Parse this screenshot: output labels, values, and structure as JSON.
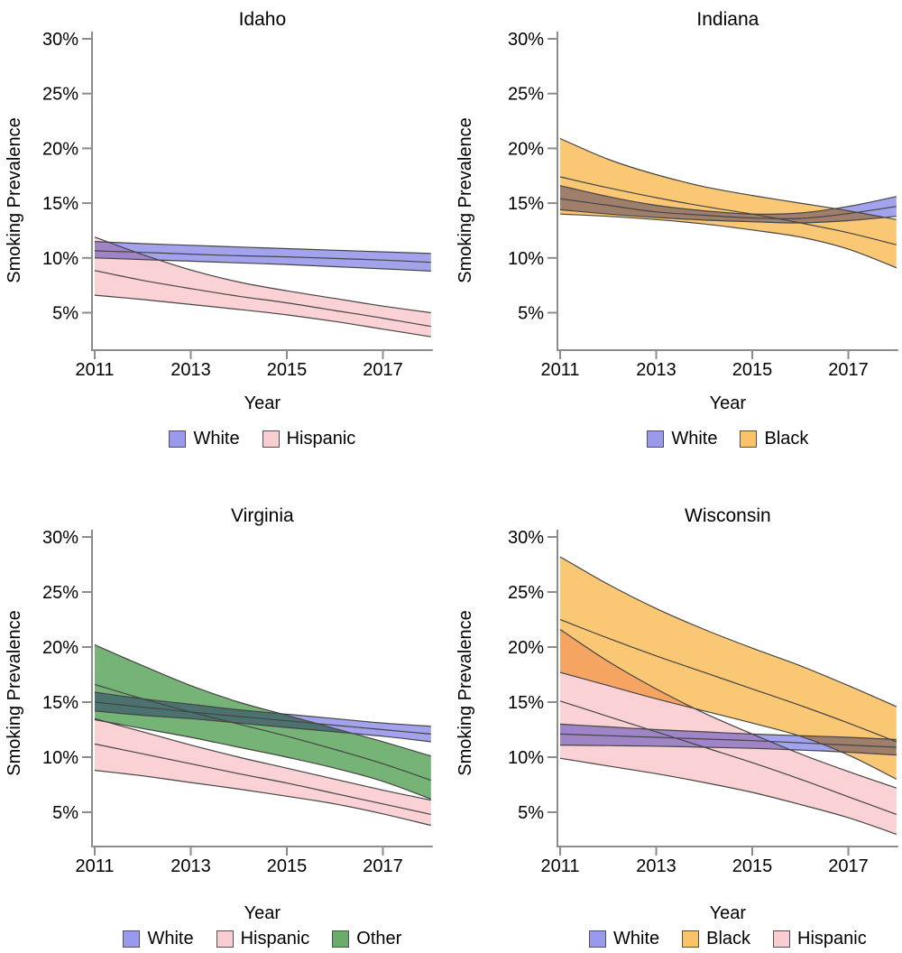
{
  "figure": {
    "ylabel": "Smoking Prevalence",
    "xlabel": "Year",
    "ytick_labels": [
      "30%",
      "25%",
      "20%",
      "15%",
      "10%",
      "5%"
    ],
    "ytick_values": [
      30,
      25,
      20,
      15,
      10,
      5
    ],
    "xtick_labels": [
      "2011",
      "2013",
      "2015",
      "2017"
    ],
    "xtick_values": [
      2011,
      2013,
      2015,
      2017
    ]
  },
  "palette": {
    "White": "#9a9aec",
    "Black": "#fac368",
    "Hispanic": "#facdd1",
    "Other": "#6aad6a",
    "band_edge": "#454545",
    "axis": "#8c8c8c",
    "text": "#000000",
    "background": "#ffffff"
  },
  "chart_data": [
    {
      "type": "area",
      "title": "Idaho",
      "xlabel": "Year",
      "ylabel": "Smoking Prevalence",
      "x": [
        2011,
        2012,
        2013,
        2014,
        2015,
        2016,
        2017,
        2018
      ],
      "xlim": [
        2011,
        2018
      ],
      "ylim": [
        1.5,
        30.5
      ],
      "legend_position": "bottom",
      "grid": false,
      "legend": [
        "White",
        "Hispanic"
      ],
      "series": [
        {
          "name": "White",
          "color": "White",
          "upper": [
            11.5,
            11.3,
            11.15,
            11.0,
            10.85,
            10.7,
            10.55,
            10.4
          ],
          "center": [
            10.65,
            10.5,
            10.35,
            10.2,
            10.1,
            9.95,
            9.8,
            9.6
          ],
          "lower": [
            10.0,
            9.85,
            9.7,
            9.55,
            9.4,
            9.2,
            9.0,
            8.8
          ]
        },
        {
          "name": "Hispanic",
          "color": "Hispanic",
          "upper": [
            11.9,
            10.3,
            8.9,
            7.8,
            7.0,
            6.3,
            5.6,
            5.0
          ],
          "center": [
            8.85,
            7.95,
            7.2,
            6.5,
            5.9,
            5.2,
            4.5,
            3.75
          ],
          "lower": [
            6.6,
            6.2,
            5.75,
            5.3,
            4.8,
            4.2,
            3.5,
            2.8
          ]
        }
      ]
    },
    {
      "type": "area",
      "title": "Indiana",
      "xlabel": "Year",
      "ylabel": "Smoking Prevalence",
      "x": [
        2011,
        2012,
        2013,
        2014,
        2015,
        2016,
        2017,
        2018
      ],
      "xlim": [
        2011,
        2018
      ],
      "ylim": [
        1.5,
        30.5
      ],
      "legend_position": "bottom",
      "grid": false,
      "legend": [
        "White",
        "Black"
      ],
      "series": [
        {
          "name": "White",
          "color": "White",
          "upper": [
            16.6,
            15.6,
            14.8,
            14.3,
            14.0,
            14.1,
            14.7,
            15.6
          ],
          "center": [
            15.4,
            14.8,
            14.2,
            13.9,
            13.65,
            13.6,
            14.05,
            14.7
          ],
          "lower": [
            14.4,
            14.0,
            13.7,
            13.45,
            13.3,
            13.2,
            13.4,
            13.8
          ]
        },
        {
          "name": "Black",
          "color": "Black",
          "upper": [
            20.9,
            19.0,
            17.6,
            16.5,
            15.7,
            15.0,
            14.3,
            13.5
          ],
          "center": [
            17.4,
            16.4,
            15.5,
            14.7,
            14.0,
            13.2,
            12.3,
            11.2
          ],
          "lower": [
            14.0,
            13.8,
            13.5,
            13.1,
            12.55,
            11.9,
            10.8,
            9.1
          ]
        }
      ]
    },
    {
      "type": "area",
      "title": "Virginia",
      "xlabel": "Year",
      "ylabel": "Smoking Prevalence",
      "x": [
        2011,
        2012,
        2013,
        2014,
        2015,
        2016,
        2017,
        2018
      ],
      "xlim": [
        2011,
        2018
      ],
      "ylim": [
        1.5,
        30.5
      ],
      "legend_position": "bottom",
      "grid": false,
      "legend": [
        "White",
        "Hispanic",
        "Other"
      ],
      "series": [
        {
          "name": "White",
          "color": "White",
          "upper": [
            15.9,
            15.3,
            14.8,
            14.3,
            13.9,
            13.5,
            13.1,
            12.8
          ],
          "center": [
            15.0,
            14.55,
            14.1,
            13.7,
            13.3,
            12.9,
            12.5,
            12.1
          ],
          "lower": [
            14.2,
            13.8,
            13.5,
            13.1,
            12.7,
            12.3,
            11.9,
            11.4
          ]
        },
        {
          "name": "Hispanic",
          "color": "Hispanic",
          "upper": [
            13.5,
            12.3,
            11.1,
            10.0,
            9.0,
            8.0,
            7.0,
            6.1
          ],
          "center": [
            11.2,
            10.3,
            9.4,
            8.5,
            7.65,
            6.7,
            5.75,
            4.8
          ],
          "lower": [
            8.8,
            8.3,
            7.7,
            7.1,
            6.45,
            5.75,
            4.85,
            3.8
          ]
        },
        {
          "name": "Other",
          "color": "Other",
          "upper": [
            20.2,
            18.3,
            16.5,
            15.0,
            13.8,
            12.6,
            11.4,
            10.1
          ],
          "center": [
            16.6,
            15.3,
            14.1,
            13.0,
            11.9,
            10.7,
            9.4,
            7.9
          ],
          "lower": [
            13.4,
            12.6,
            11.8,
            10.9,
            10.0,
            9.0,
            7.8,
            6.2
          ]
        }
      ]
    },
    {
      "type": "area",
      "title": "Wisconsin",
      "xlabel": "Year",
      "ylabel": "Smoking Prevalence",
      "x": [
        2011,
        2012,
        2013,
        2014,
        2015,
        2016,
        2017,
        2018
      ],
      "xlim": [
        2011,
        2018
      ],
      "ylim": [
        1.5,
        30.5
      ],
      "legend_position": "bottom",
      "grid": false,
      "legend": [
        "White",
        "Black",
        "Hispanic"
      ],
      "series": [
        {
          "name": "White",
          "color": "White",
          "upper": [
            13.0,
            12.75,
            12.5,
            12.3,
            12.1,
            11.95,
            11.8,
            11.6
          ],
          "center": [
            12.1,
            11.95,
            11.8,
            11.65,
            11.5,
            11.3,
            11.1,
            10.9
          ],
          "lower": [
            11.1,
            11.05,
            11.0,
            10.9,
            10.8,
            10.65,
            10.45,
            10.2
          ]
        },
        {
          "name": "Black",
          "color": "Black",
          "upper": [
            28.2,
            25.7,
            23.5,
            21.6,
            19.9,
            18.3,
            16.5,
            14.6
          ],
          "center": [
            22.5,
            20.8,
            19.2,
            17.7,
            16.2,
            14.7,
            13.1,
            11.4
          ],
          "lower": [
            17.7,
            16.5,
            15.3,
            14.2,
            13.1,
            11.9,
            10.2,
            8.0
          ]
        },
        {
          "name": "Hispanic",
          "color": "Hispanic",
          "upper": [
            21.6,
            18.7,
            16.2,
            14.0,
            12.1,
            10.3,
            8.7,
            7.2
          ],
          "center": [
            15.1,
            13.7,
            12.3,
            10.9,
            9.5,
            8.0,
            6.4,
            4.8
          ],
          "lower": [
            9.9,
            9.2,
            8.5,
            7.7,
            6.8,
            5.7,
            4.5,
            3.0
          ]
        }
      ]
    }
  ]
}
